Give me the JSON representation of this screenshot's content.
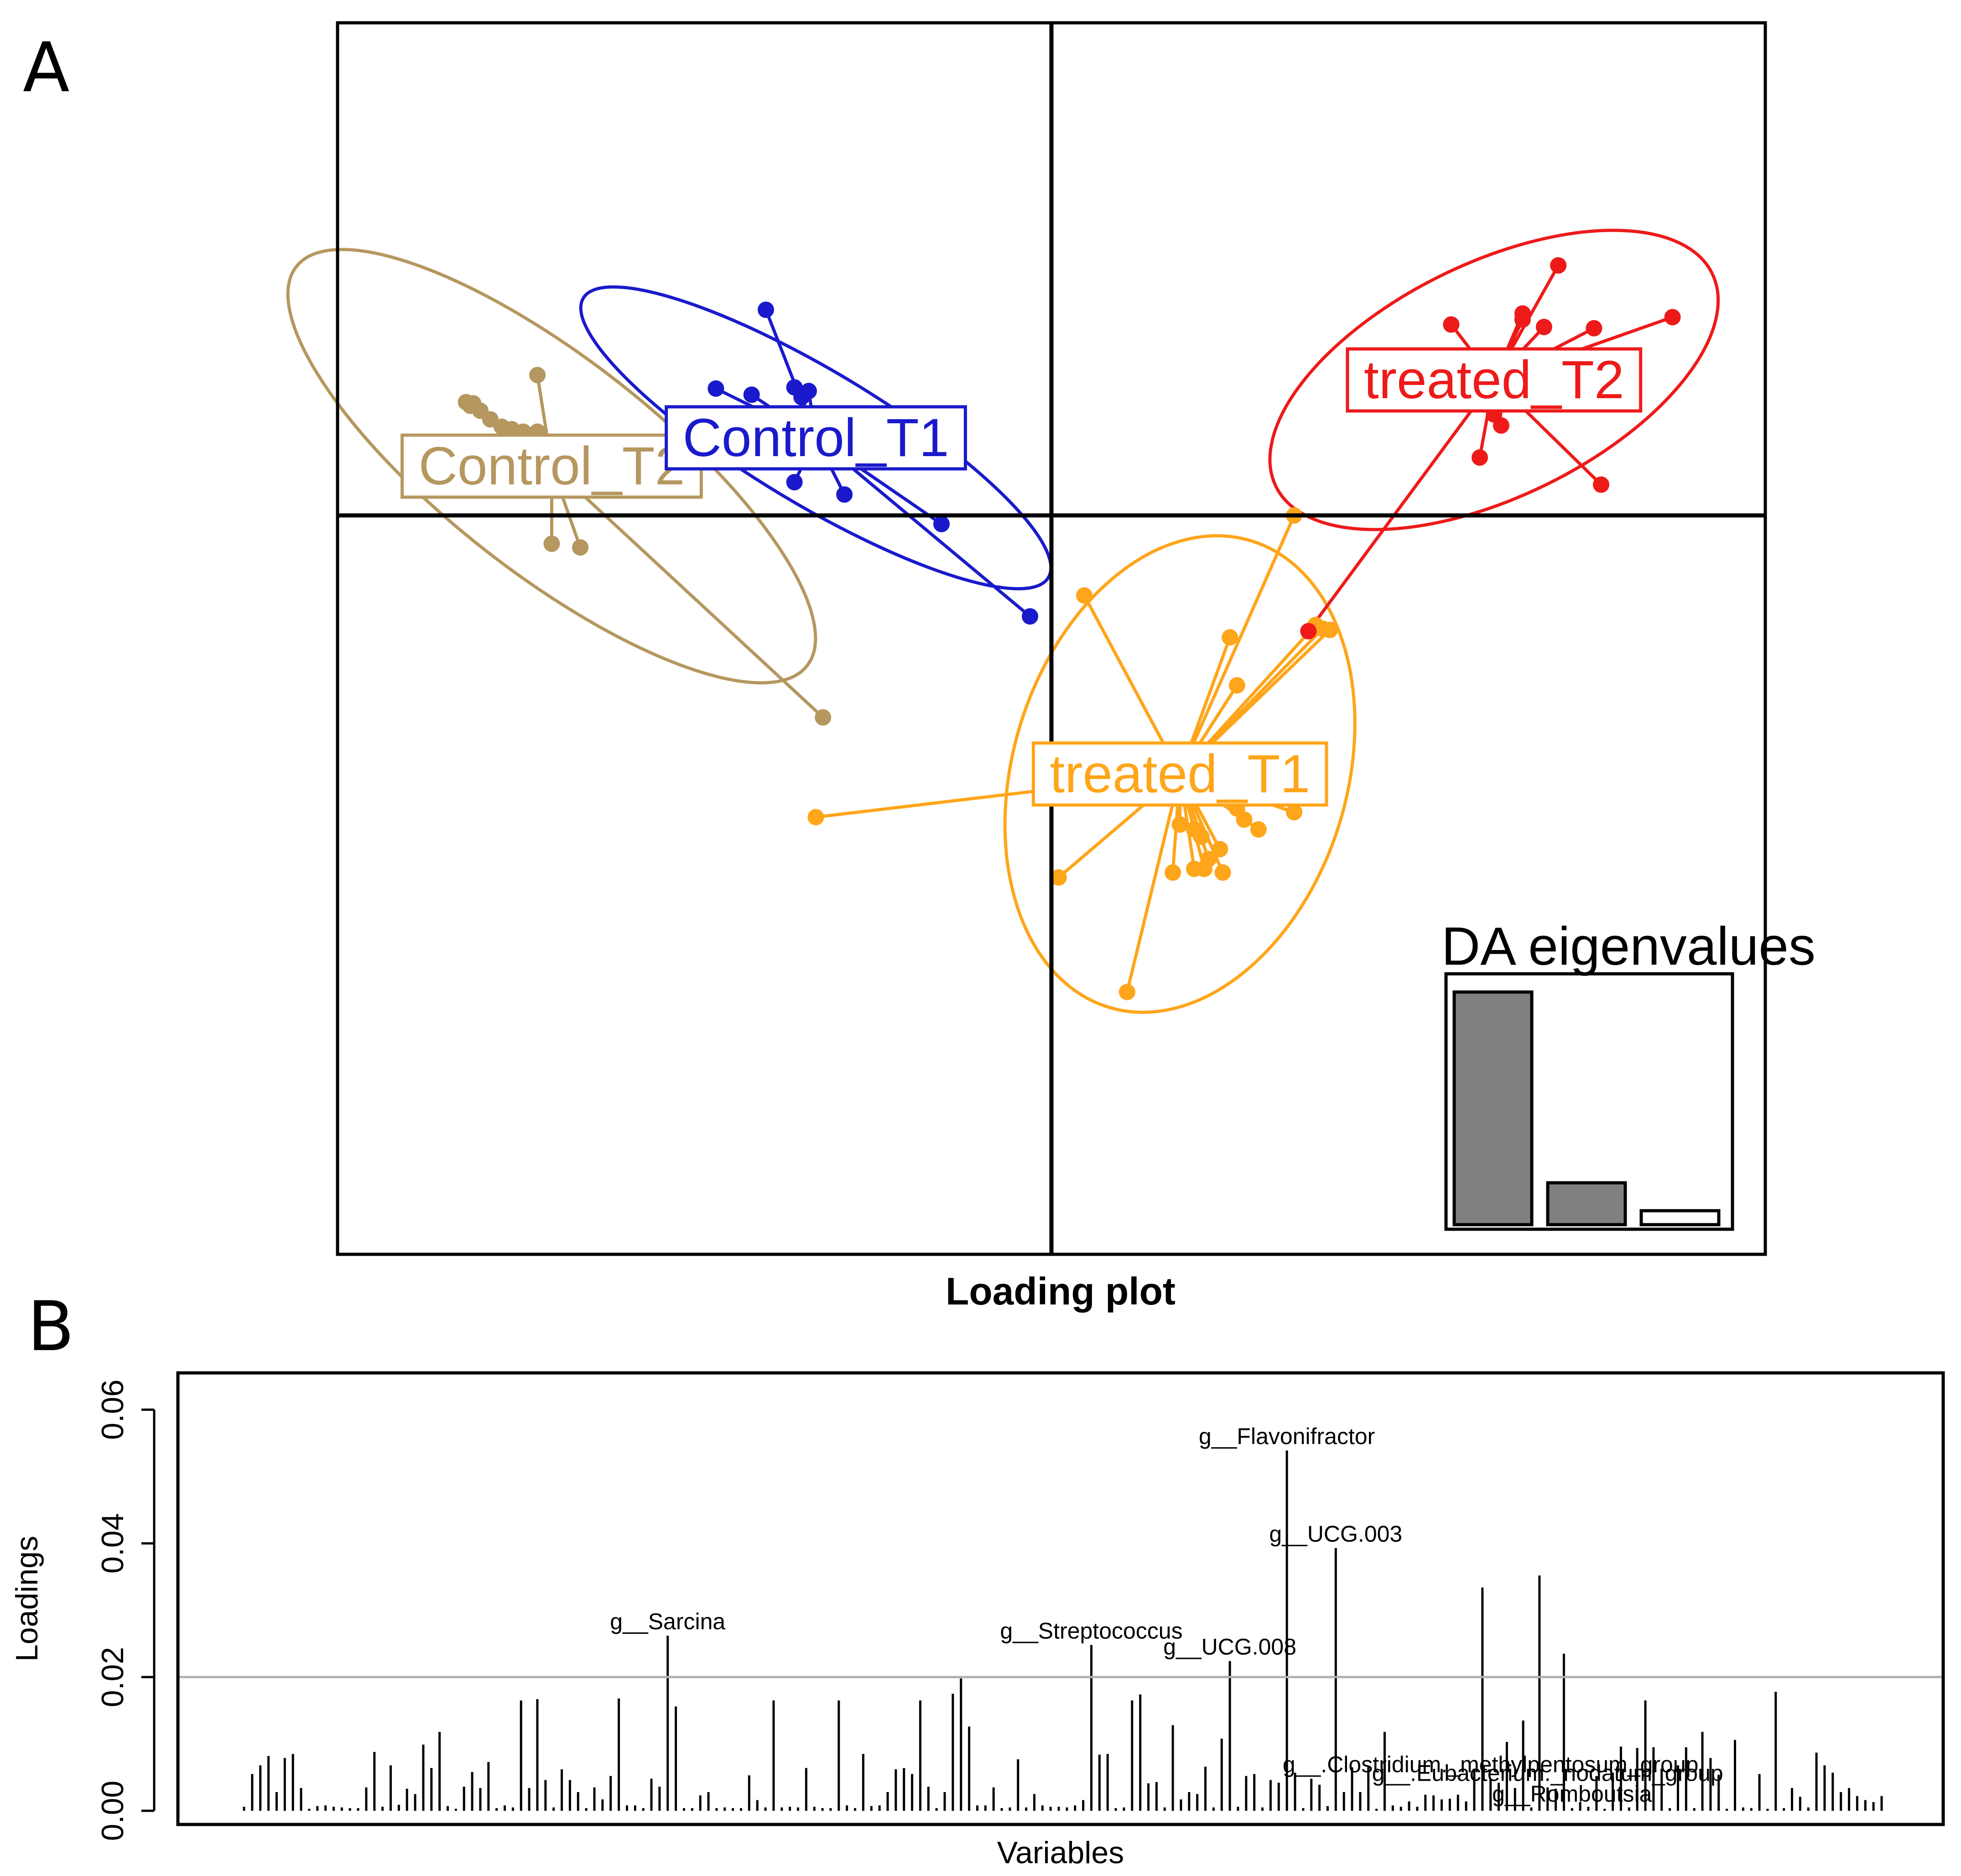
{
  "panel_labels": {
    "a": "A",
    "b": "B"
  },
  "chart_data": [
    {
      "type": "scatter",
      "panel": "A",
      "title": "Loading plot",
      "xlim": [
        -5,
        5
      ],
      "ylim": [
        -6,
        4
      ],
      "origin": [
        0,
        0
      ],
      "groups": [
        {
          "name": "Control_T2",
          "color": "#b5975f",
          "centroid": [
            -3.5,
            0.4
          ],
          "points": [
            [
              -4.1,
              0.92
            ],
            [
              -4.05,
              0.91
            ],
            [
              -4.07,
              0.89
            ],
            [
              -4.0,
              0.85
            ],
            [
              -3.93,
              0.78
            ],
            [
              -3.85,
              0.72
            ],
            [
              -3.78,
              0.7
            ],
            [
              -3.7,
              0.68
            ],
            [
              -3.62,
              0.66
            ],
            [
              -3.6,
              0.68
            ],
            [
              -3.6,
              1.14
            ],
            [
              -3.5,
              -0.23
            ],
            [
              -3.3,
              -0.26
            ],
            [
              -1.6,
              -1.64
            ]
          ],
          "ellipse": {
            "rx": 2.27,
            "ry": 0.87,
            "angle": 38
          }
        },
        {
          "name": "Control_T1",
          "color": "#1a1acc",
          "centroid": [
            -1.65,
            0.63
          ],
          "points": [
            [
              -2.0,
              1.67
            ],
            [
              -2.35,
              1.03
            ],
            [
              -2.1,
              0.98
            ],
            [
              -1.8,
              1.04
            ],
            [
              -1.75,
              0.96
            ],
            [
              -1.7,
              1.01
            ],
            [
              -1.85,
              0.7
            ],
            [
              -1.92,
              0.66
            ],
            [
              -1.8,
              0.27
            ],
            [
              -1.45,
              0.17
            ],
            [
              -0.77,
              -0.07
            ],
            [
              -0.15,
              -0.82
            ]
          ],
          "ellipse": {
            "rx": 1.9,
            "ry": 0.54,
            "angle": 31
          }
        },
        {
          "name": "treated_T1",
          "color": "#ffa51a",
          "centroid": [
            0.9,
            -2.1
          ],
          "points": [
            [
              1.7,
              0.0
            ],
            [
              1.85,
              -0.89
            ],
            [
              1.95,
              -0.93
            ],
            [
              1.9,
              -0.92
            ],
            [
              1.25,
              -0.99
            ],
            [
              1.3,
              -1.38
            ],
            [
              -1.65,
              -2.45
            ],
            [
              0.23,
              -0.65
            ],
            [
              0.05,
              -2.94
            ],
            [
              0.53,
              -3.87
            ],
            [
              1.3,
              -2.38
            ],
            [
              1.45,
              -2.55
            ],
            [
              1.7,
              -2.41
            ],
            [
              1.35,
              -2.47
            ],
            [
              0.9,
              -2.51
            ],
            [
              1.0,
              -2.55
            ],
            [
              1.05,
              -2.61
            ],
            [
              1.18,
              -2.71
            ],
            [
              1.0,
              -2.87
            ],
            [
              1.1,
              -2.79
            ],
            [
              0.85,
              -2.9
            ],
            [
              1.07,
              -2.87
            ],
            [
              1.2,
              -2.9
            ]
          ],
          "ellipse": {
            "rx": 1.17,
            "ry": 1.98,
            "angle": 17
          }
        },
        {
          "name": "treated_T2",
          "color": "#ee1a1a",
          "centroid": [
            3.1,
            1.1
          ],
          "points": [
            [
              3.55,
              2.03
            ],
            [
              2.8,
              1.55
            ],
            [
              3.3,
              1.59
            ],
            [
              3.3,
              1.64
            ],
            [
              3.45,
              1.53
            ],
            [
              3.8,
              1.52
            ],
            [
              4.35,
              1.61
            ],
            [
              2.25,
              1.27
            ],
            [
              3.1,
              0.82
            ],
            [
              3.15,
              0.73
            ],
            [
              3.0,
              0.47
            ],
            [
              3.85,
              0.25
            ],
            [
              1.8,
              -0.94
            ]
          ],
          "ellipse": {
            "rx": 1.7,
            "ry": 0.95,
            "angle": -26
          }
        }
      ],
      "inset": {
        "title": "DA eigenvalues",
        "values": [
          100,
          18,
          6
        ],
        "fills": [
          "#808080",
          "#808080",
          "#ffffff"
        ]
      }
    },
    {
      "type": "bar",
      "panel": "B",
      "xlabel": "Variables",
      "ylabel": "Loadings",
      "ylim": [
        0,
        0.064
      ],
      "yticks": [
        {
          "value": 0.0,
          "label": "0.00"
        },
        {
          "value": 0.02,
          "label": "0.02"
        },
        {
          "value": 0.04,
          "label": "0.04"
        },
        {
          "value": 0.06,
          "label": "0.06"
        }
      ],
      "threshold": 0.02,
      "values": [
        0.0006,
        0.0055,
        0.0068,
        0.0082,
        0.0028,
        0.0079,
        0.0085,
        0.0034,
        0.0003,
        0.0007,
        0.0008,
        0.0006,
        0.0005,
        0.0004,
        0.0004,
        0.0035,
        0.0088,
        0.0006,
        0.0068,
        0.0009,
        0.0033,
        0.0025,
        0.0099,
        0.0064,
        0.0118,
        0.0007,
        0.0003,
        0.0036,
        0.0058,
        0.0034,
        0.0073,
        0.0004,
        0.0008,
        0.0005,
        0.0165,
        0.0034,
        0.0167,
        0.0046,
        0.0005,
        0.0062,
        0.0046,
        0.0028,
        0.0004,
        0.0035,
        0.0017,
        0.0052,
        0.0168,
        0.0008,
        0.0008,
        0.0004,
        0.0048,
        0.0036,
        0.0262,
        0.0156,
        0.0004,
        0.0004,
        0.0023,
        0.0028,
        0.0004,
        0.0005,
        0.0004,
        0.0004,
        0.0053,
        0.0016,
        0.0005,
        0.0165,
        0.0005,
        0.0006,
        0.0005,
        0.0064,
        0.0006,
        0.0004,
        0.0004,
        0.0165,
        0.0008,
        0.0004,
        0.0085,
        0.0007,
        0.0008,
        0.0028,
        0.0062,
        0.0064,
        0.0055,
        0.0165,
        0.0036,
        0.0004,
        0.0028,
        0.0175,
        0.0198,
        0.0126,
        0.0008,
        0.0008,
        0.0035,
        0.0004,
        0.0005,
        0.0077,
        0.0005,
        0.0025,
        0.0008,
        0.0006,
        0.0006,
        0.0005,
        0.0008,
        0.0016,
        0.0248,
        0.0084,
        0.0085,
        0.0004,
        0.0005,
        0.0165,
        0.0174,
        0.0041,
        0.0043,
        0.0005,
        0.0128,
        0.0017,
        0.0028,
        0.0025,
        0.0066,
        0.0005,
        0.0108,
        0.0224,
        0.0006,
        0.0052,
        0.0055,
        0.0005,
        0.0046,
        0.0042,
        0.0539,
        0.0057,
        0.0004,
        0.0048,
        0.0039,
        0.0007,
        0.0393,
        0.0028,
        0.0065,
        0.0028,
        0.0065,
        0.0003,
        0.0118,
        0.0008,
        0.0006,
        0.0014,
        0.0006,
        0.0024,
        0.0023,
        0.0017,
        0.0018,
        0.0024,
        0.0014,
        0.0063,
        0.0334,
        0.0048,
        0.0042,
        0.0103,
        0.0034,
        0.0135,
        0.0005,
        0.0352,
        0.0035,
        0.0033,
        0.0235,
        0.0004,
        0.0013,
        0.0006,
        0.0052,
        0.0003,
        0.0057,
        0.0096,
        0.0005,
        0.0094,
        0.0165,
        0.0095,
        0.0063,
        0.0004,
        0.0068,
        0.0095,
        0.0004,
        0.0118,
        0.0079,
        0.0054,
        0.0003,
        0.0106,
        0.0005,
        0.0004,
        0.0055,
        0.0003,
        0.0178,
        0.0004,
        0.0034,
        0.0021,
        0.0005,
        0.0087,
        0.0068,
        0.0057,
        0.0028,
        0.0034,
        0.0022,
        0.0016,
        0.0013,
        0.0022
      ],
      "annotations": [
        {
          "index": 52,
          "label": "g__Sarcina"
        },
        {
          "index": 104,
          "label": "g__Streptococcus"
        },
        {
          "index": 121,
          "label": "g__UCG.008"
        },
        {
          "index": 128,
          "label": "g__Flavonifractor"
        },
        {
          "index": 134,
          "label": "g__UCG.003"
        },
        {
          "index": 153,
          "label": "g__.Clostridium._methylpentosum_group"
        },
        {
          "index": 160,
          "label": "g__.Eubacterium._nodatum_group"
        },
        {
          "index": 163,
          "label": "g__Romboutsia"
        }
      ]
    }
  ]
}
